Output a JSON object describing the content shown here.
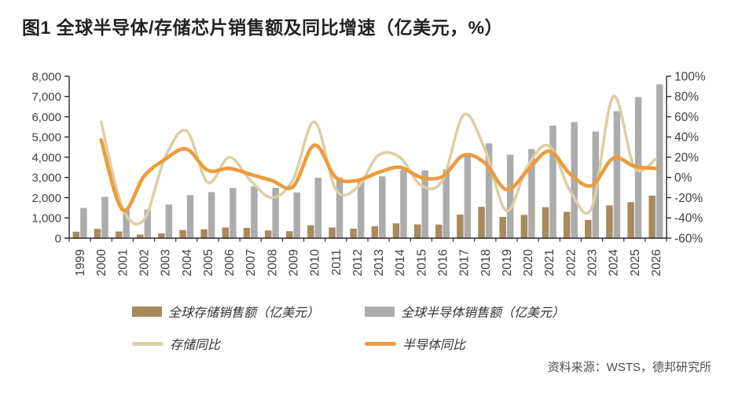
{
  "title": "图1 全球半导体/存储芯片销售额及同比增速（亿美元，%）",
  "source": "资料来源：WSTS，德邦研究所",
  "colors": {
    "memory_bar": "#A78A5E",
    "semi_bar": "#ACACAC",
    "memory_line": "#DCCFA6",
    "semi_line": "#EC9B3D",
    "axis_line": "#2b2b2b",
    "tick_label": "#404040"
  },
  "chart_data": {
    "type": "bar",
    "subtype": "dual-axis combo: grouped bars (left axis) + smoothed YoY lines (right axis)",
    "title": "全球半导体/存储芯片销售额及同比增速（亿美元，%）",
    "categories": [
      "1999",
      "2000",
      "2001",
      "2002",
      "2003",
      "2004",
      "2005",
      "2006",
      "2007",
      "2008",
      "2009",
      "2010",
      "2011",
      "2012",
      "2013",
      "2014",
      "2015",
      "2016",
      "2017",
      "2018",
      "2019",
      "2020",
      "2021",
      "2022",
      "2023",
      "2024",
      "2025",
      "2026"
    ],
    "series": [
      {
        "name": "全球存储销售额（亿美元）",
        "type": "bar",
        "axis": "left",
        "values": [
          320,
          460,
          330,
          180,
          240,
          400,
          440,
          530,
          510,
          380,
          340,
          640,
          530,
          470,
          590,
          730,
          680,
          670,
          1160,
          1550,
          1050,
          1150,
          1530,
          1300,
          900,
          1620,
          1780,
          2100
        ]
      },
      {
        "name": "全球半导体销售额（亿美元）",
        "type": "bar",
        "axis": "left",
        "values": [
          1494,
          2044,
          1390,
          1410,
          1663,
          2130,
          2275,
          2477,
          2556,
          2486,
          2263,
          2983,
          2995,
          2916,
          3056,
          3358,
          3352,
          3389,
          4122,
          4688,
          4123,
          4404,
          5559,
          5735,
          5268,
          6276,
          6970,
          7600
        ]
      },
      {
        "name": "存储同比",
        "type": "line",
        "axis": "right",
        "values": [
          null,
          55,
          -30,
          -42,
          20,
          46,
          -5,
          20,
          -3,
          -20,
          -2,
          55,
          -12,
          -10,
          22,
          20,
          -8,
          -3,
          62,
          27,
          -33,
          12,
          31,
          -14,
          -30,
          80,
          10,
          18
        ]
      },
      {
        "name": "半导体同比",
        "type": "line",
        "axis": "right",
        "values": [
          null,
          37,
          -32,
          1,
          18,
          28,
          7,
          9,
          3,
          -3,
          -9,
          32,
          0,
          -3,
          5,
          10,
          0,
          1,
          22,
          14,
          -12,
          7,
          26,
          3,
          -8,
          19,
          11,
          9
        ]
      }
    ],
    "left_axis": {
      "min": 0,
      "max": 8000,
      "step": 1000,
      "tick_labels": [
        "0",
        "1,000",
        "2,000",
        "3,000",
        "4,000",
        "5,000",
        "6,000",
        "7,000",
        "8,000"
      ]
    },
    "right_axis": {
      "min": -60,
      "max": 100,
      "step": 20,
      "unit": "%",
      "tick_labels": [
        "-60%",
        "-40%",
        "-20%",
        "0%",
        "20%",
        "40%",
        "60%",
        "80%",
        "100%"
      ]
    },
    "grid": false,
    "legend_position": "bottom"
  },
  "legend": {
    "items": [
      {
        "label": "全球存储销售额（亿美元）",
        "swatch": "bar",
        "color_key": "memory_bar"
      },
      {
        "label": "全球半导体销售额（亿美元）",
        "swatch": "bar",
        "color_key": "semi_bar"
      },
      {
        "label": "存储同比",
        "swatch": "line",
        "color_key": "memory_line"
      },
      {
        "label": "半导体同比",
        "swatch": "line",
        "color_key": "semi_line"
      }
    ]
  }
}
